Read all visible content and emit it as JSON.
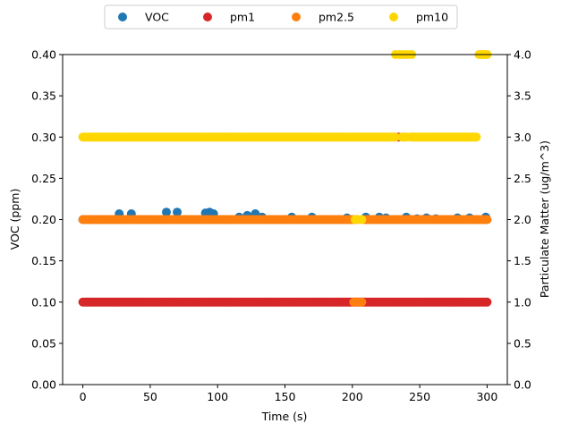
{
  "chart_data": {
    "type": "scatter",
    "xlabel": "Time (s)",
    "ylabel": "VOC (ppm)",
    "y2label": "Particulate Matter (ug/m^3)",
    "xlim": [
      -15,
      315
    ],
    "ylim": [
      0,
      0.4
    ],
    "y2lim": [
      0,
      4.0
    ],
    "xticks": [
      "0",
      "50",
      "100",
      "150",
      "200",
      "250",
      "300"
    ],
    "yticks": [
      "0.00",
      "0.05",
      "0.10",
      "0.15",
      "0.20",
      "0.25",
      "0.30",
      "0.35",
      "0.40"
    ],
    "y2ticks": [
      "0.0",
      "0.5",
      "1.0",
      "1.5",
      "2.0",
      "2.5",
      "3.0",
      "3.5",
      "4.0"
    ],
    "legend_position": "top-center",
    "grid": false,
    "series": [
      {
        "name": "VOC",
        "color": "#1f77b4",
        "axis": "left",
        "points": [
          [
            0,
            0.2
          ],
          [
            5,
            0.2
          ],
          [
            10,
            0.2
          ],
          [
            15,
            0.2
          ],
          [
            20,
            0.2
          ],
          [
            27,
            0.207
          ],
          [
            30,
            0.2
          ],
          [
            36,
            0.207
          ],
          [
            40,
            0.2
          ],
          [
            45,
            0.2
          ],
          [
            50,
            0.2
          ],
          [
            55,
            0.2
          ],
          [
            62,
            0.209
          ],
          [
            70,
            0.209
          ],
          [
            75,
            0.2
          ],
          [
            80,
            0.2
          ],
          [
            85,
            0.2
          ],
          [
            91,
            0.208
          ],
          [
            94,
            0.209
          ],
          [
            97,
            0.207
          ],
          [
            100,
            0.2
          ],
          [
            105,
            0.2
          ],
          [
            110,
            0.2
          ],
          [
            116,
            0.203
          ],
          [
            122,
            0.205
          ],
          [
            128,
            0.207
          ],
          [
            133,
            0.203
          ],
          [
            138,
            0.2
          ],
          [
            145,
            0.2
          ],
          [
            150,
            0.2
          ],
          [
            155,
            0.203
          ],
          [
            160,
            0.2
          ],
          [
            165,
            0.2
          ],
          [
            170,
            0.203
          ],
          [
            175,
            0.2
          ],
          [
            180,
            0.2
          ],
          [
            185,
            0.2
          ],
          [
            190,
            0.2
          ],
          [
            196,
            0.202
          ],
          [
            210,
            0.203
          ],
          [
            220,
            0.203
          ],
          [
            225,
            0.202
          ],
          [
            230,
            0.2
          ],
          [
            240,
            0.203
          ],
          [
            248,
            0.201
          ],
          [
            255,
            0.202
          ],
          [
            262,
            0.201
          ],
          [
            270,
            0.2
          ],
          [
            278,
            0.202
          ],
          [
            287,
            0.202
          ],
          [
            293,
            0.2
          ],
          [
            299,
            0.203
          ]
        ]
      },
      {
        "name": "pm1",
        "color": "#d62728",
        "axis": "right",
        "x_range": [
          0,
          300
        ],
        "step": 1,
        "value": 1.0,
        "extra_points": [
          [
            234,
            3.0
          ]
        ]
      },
      {
        "name": "pm2.5",
        "color": "#ff7f0e",
        "axis": "right",
        "x_range": [
          0,
          300
        ],
        "step": 1,
        "value": 2.0,
        "gaps": [
          [
            204,
            208
          ]
        ],
        "extra_points": [
          [
            201,
            1.0
          ],
          [
            203,
            1.0
          ],
          [
            205,
            1.0
          ],
          [
            207,
            1.0
          ]
        ]
      },
      {
        "name": "pm10",
        "color": "#ffd700",
        "axis": "right",
        "x_range": [
          0,
          300
        ],
        "step": 1,
        "value": 3.0,
        "gaps": [
          [
            233,
            236
          ],
          [
            241,
            242
          ],
          [
            293,
            300
          ]
        ],
        "extra_points": [
          [
            202,
            2.0
          ],
          [
            205,
            2.0
          ],
          [
            207,
            2.0
          ],
          [
            232,
            4.0
          ],
          [
            235,
            4.0
          ],
          [
            238,
            4.0
          ],
          [
            241,
            4.0
          ],
          [
            244,
            4.0
          ],
          [
            294,
            4.0
          ],
          [
            296,
            4.0
          ],
          [
            298,
            4.0
          ],
          [
            300,
            4.0
          ]
        ]
      }
    ]
  }
}
